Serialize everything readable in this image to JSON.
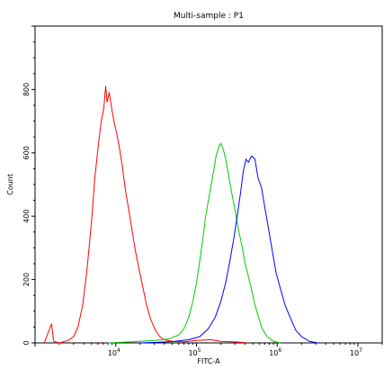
{
  "chart_data": {
    "type": "line",
    "title": "Multi-sample : P1",
    "xlabel": "FITC-A",
    "ylabel": "Count",
    "x_scale": "log",
    "xlim": [
      1000,
      20000000
    ],
    "ylim": [
      0,
      1000
    ],
    "x_tick_labels": [
      {
        "base": "10",
        "exp": "4",
        "value": 10000
      },
      {
        "base": "10",
        "exp": "5",
        "value": 100000
      },
      {
        "base": "10",
        "exp": "6",
        "value": 1000000
      },
      {
        "base": "10",
        "exp": "7",
        "value": 10000000
      }
    ],
    "y_ticks": [
      0,
      200,
      400,
      600,
      800
    ],
    "grid": false,
    "series": [
      {
        "color": "#ff0000",
        "points": [
          [
            1300,
            0
          ],
          [
            1600,
            60
          ],
          [
            1700,
            5
          ],
          [
            2000,
            0
          ],
          [
            2600,
            8
          ],
          [
            3000,
            20
          ],
          [
            3400,
            50
          ],
          [
            3900,
            120
          ],
          [
            4400,
            230
          ],
          [
            5000,
            380
          ],
          [
            5500,
            520
          ],
          [
            6000,
            610
          ],
          [
            6600,
            700
          ],
          [
            7100,
            740
          ],
          [
            7500,
            810
          ],
          [
            7800,
            760
          ],
          [
            8300,
            790
          ],
          [
            8900,
            740
          ],
          [
            9500,
            700
          ],
          [
            10300,
            660
          ],
          [
            11000,
            620
          ],
          [
            12000,
            560
          ],
          [
            13200,
            480
          ],
          [
            14500,
            420
          ],
          [
            16000,
            350
          ],
          [
            17500,
            290
          ],
          [
            19500,
            230
          ],
          [
            21500,
            180
          ],
          [
            24000,
            120
          ],
          [
            27000,
            75
          ],
          [
            31000,
            40
          ],
          [
            35000,
            20
          ],
          [
            40000,
            10
          ],
          [
            50000,
            5
          ],
          [
            70000,
            3
          ],
          [
            100000,
            8
          ],
          [
            150000,
            10
          ],
          [
            200000,
            5
          ],
          [
            300000,
            3
          ],
          [
            400000,
            1
          ]
        ]
      },
      {
        "color": "#00cc00",
        "points": [
          [
            8000,
            0
          ],
          [
            15000,
            3
          ],
          [
            30000,
            8
          ],
          [
            45000,
            12
          ],
          [
            60000,
            25
          ],
          [
            70000,
            45
          ],
          [
            80000,
            80
          ],
          [
            90000,
            130
          ],
          [
            100000,
            190
          ],
          [
            110000,
            260
          ],
          [
            120000,
            330
          ],
          [
            130000,
            400
          ],
          [
            145000,
            470
          ],
          [
            160000,
            530
          ],
          [
            175000,
            590
          ],
          [
            190000,
            620
          ],
          [
            200000,
            630
          ],
          [
            215000,
            610
          ],
          [
            230000,
            580
          ],
          [
            250000,
            530
          ],
          [
            275000,
            470
          ],
          [
            300000,
            420
          ],
          [
            330000,
            360
          ],
          [
            370000,
            300
          ],
          [
            400000,
            250
          ],
          [
            440000,
            210
          ],
          [
            480000,
            170
          ],
          [
            530000,
            120
          ],
          [
            590000,
            80
          ],
          [
            650000,
            45
          ],
          [
            750000,
            20
          ],
          [
            900000,
            5
          ],
          [
            1100000,
            0
          ]
        ]
      },
      {
        "color": "#0000ff",
        "points": [
          [
            20000,
            0
          ],
          [
            50000,
            4
          ],
          [
            80000,
            10
          ],
          [
            110000,
            20
          ],
          [
            140000,
            45
          ],
          [
            170000,
            80
          ],
          [
            200000,
            130
          ],
          [
            230000,
            190
          ],
          [
            260000,
            260
          ],
          [
            290000,
            330
          ],
          [
            320000,
            400
          ],
          [
            350000,
            470
          ],
          [
            380000,
            540
          ],
          [
            410000,
            580
          ],
          [
            440000,
            570
          ],
          [
            480000,
            590
          ],
          [
            530000,
            580
          ],
          [
            580000,
            520
          ],
          [
            640000,
            490
          ],
          [
            700000,
            430
          ],
          [
            780000,
            360
          ],
          [
            870000,
            290
          ],
          [
            970000,
            220
          ],
          [
            1100000,
            170
          ],
          [
            1250000,
            120
          ],
          [
            1450000,
            80
          ],
          [
            1700000,
            40
          ],
          [
            2000000,
            20
          ],
          [
            2500000,
            5
          ],
          [
            3200000,
            0
          ]
        ]
      }
    ]
  }
}
